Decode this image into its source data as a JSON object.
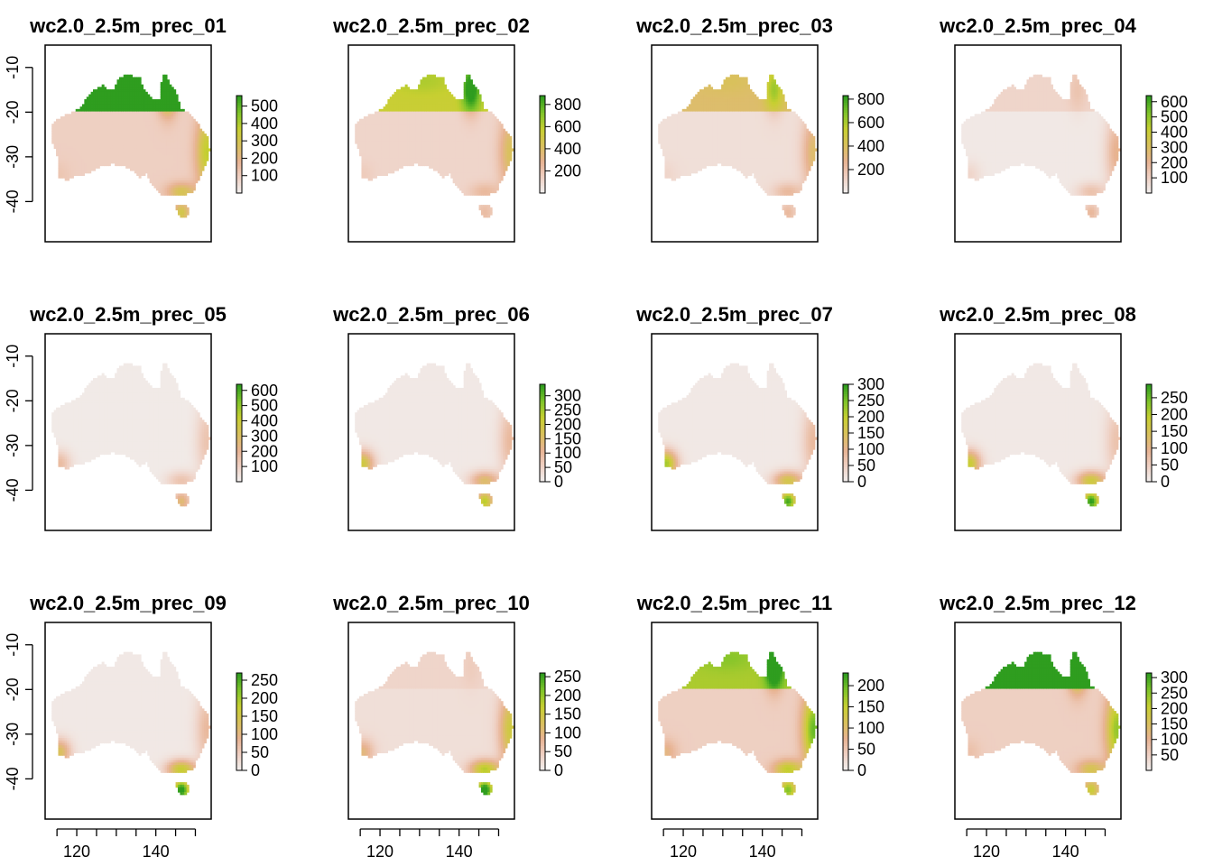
{
  "chart_data": {
    "type": "heatmap",
    "layout": {
      "rows": 3,
      "cols": 4
    },
    "x_axis": {
      "ticks": [
        120,
        140
      ],
      "lim": [
        112,
        154
      ]
    },
    "y_axis": {
      "ticks": [
        -10,
        -20,
        -30,
        -40
      ],
      "lim": [
        -49,
        -5
      ]
    },
    "colors": {
      "palette": [
        "#f2f2f2",
        "#efd2c6",
        "#e8b393",
        "#d9c15c",
        "#c7cf31",
        "#7fc42a",
        "#2f9d1f"
      ],
      "accent_low": "#f2f2f2",
      "accent_high": "#2e9c1e",
      "frame": "#000000"
    },
    "panels": [
      {
        "title": "wc2.0_2.5m_prec_01",
        "legend": {
          "ticks": [
            100,
            200,
            300,
            400,
            500
          ],
          "range": [
            0,
            560
          ]
        },
        "pattern": {
          "north": 0.85,
          "tas": 0.3,
          "sw": 0.05,
          "se": 0.35,
          "east": 0.5,
          "base": 0.18
        }
      },
      {
        "title": "wc2.0_2.5m_prec_02",
        "legend": {
          "ticks": [
            200,
            400,
            600,
            800
          ],
          "range": [
            0,
            880
          ]
        },
        "pattern": {
          "north": 0.5,
          "tas": 0.1,
          "sw": 0.05,
          "se": 0.15,
          "east": 0.35,
          "base": 0.15
        }
      },
      {
        "title": "wc2.0_2.5m_prec_03",
        "legend": {
          "ticks": [
            200,
            400,
            600,
            800
          ],
          "range": [
            0,
            830
          ]
        },
        "pattern": {
          "north": 0.35,
          "tas": 0.15,
          "sw": 0.05,
          "se": 0.2,
          "east": 0.35,
          "base": 0.1
        }
      },
      {
        "title": "wc2.0_2.5m_prec_04",
        "legend": {
          "ticks": [
            100,
            200,
            300,
            400,
            500,
            600
          ],
          "range": [
            0,
            640
          ]
        },
        "pattern": {
          "north": 0.1,
          "tas": 0.2,
          "sw": 0.1,
          "se": 0.2,
          "east": 0.3,
          "base": 0.05
        }
      },
      {
        "title": "wc2.0_2.5m_prec_05",
        "legend": {
          "ticks": [
            100,
            200,
            300,
            400,
            500,
            600
          ],
          "range": [
            0,
            640
          ]
        },
        "pattern": {
          "north": 0.0,
          "tas": 0.3,
          "sw": 0.25,
          "se": 0.2,
          "east": 0.2,
          "base": 0.04
        }
      },
      {
        "title": "wc2.0_2.5m_prec_06",
        "legend": {
          "ticks": [
            0,
            50,
            100,
            150,
            200,
            250,
            300
          ],
          "range": [
            0,
            340
          ]
        },
        "pattern": {
          "north": 0.0,
          "tas": 0.5,
          "sw": 0.55,
          "se": 0.4,
          "east": 0.25,
          "base": 0.05
        }
      },
      {
        "title": "wc2.0_2.5m_prec_07",
        "legend": {
          "ticks": [
            0,
            50,
            100,
            150,
            200,
            250,
            300
          ],
          "range": [
            0,
            300
          ]
        },
        "pattern": {
          "north": 0.0,
          "tas": 0.7,
          "sw": 0.7,
          "se": 0.5,
          "east": 0.25,
          "base": 0.05
        }
      },
      {
        "title": "wc2.0_2.5m_prec_08",
        "legend": {
          "ticks": [
            0,
            50,
            100,
            150,
            200,
            250
          ],
          "range": [
            0,
            290
          ]
        },
        "pattern": {
          "north": 0.0,
          "tas": 0.75,
          "sw": 0.6,
          "se": 0.55,
          "east": 0.2,
          "base": 0.05
        }
      },
      {
        "title": "wc2.0_2.5m_prec_09",
        "legend": {
          "ticks": [
            0,
            50,
            100,
            150,
            200,
            250
          ],
          "range": [
            0,
            270
          ]
        },
        "pattern": {
          "north": 0.0,
          "tas": 0.8,
          "sw": 0.45,
          "se": 0.6,
          "east": 0.25,
          "base": 0.05
        }
      },
      {
        "title": "wc2.0_2.5m_prec_10",
        "legend": {
          "ticks": [
            0,
            50,
            100,
            150,
            200,
            250
          ],
          "range": [
            0,
            260
          ]
        },
        "pattern": {
          "north": 0.05,
          "tas": 0.8,
          "sw": 0.3,
          "se": 0.6,
          "east": 0.5,
          "base": 0.1
        }
      },
      {
        "title": "wc2.0_2.5m_prec_11",
        "legend": {
          "ticks": [
            0,
            50,
            100,
            150,
            200
          ],
          "range": [
            0,
            230
          ]
        },
        "pattern": {
          "north": 0.55,
          "tas": 0.5,
          "sw": 0.2,
          "se": 0.5,
          "east": 0.7,
          "base": 0.18
        }
      },
      {
        "title": "wc2.0_2.5m_prec_12",
        "legend": {
          "ticks": [
            50,
            100,
            150,
            200,
            250,
            300
          ],
          "range": [
            0,
            315
          ]
        },
        "pattern": {
          "north": 0.9,
          "tas": 0.35,
          "sw": 0.08,
          "se": 0.35,
          "east": 0.6,
          "base": 0.18
        }
      }
    ]
  }
}
